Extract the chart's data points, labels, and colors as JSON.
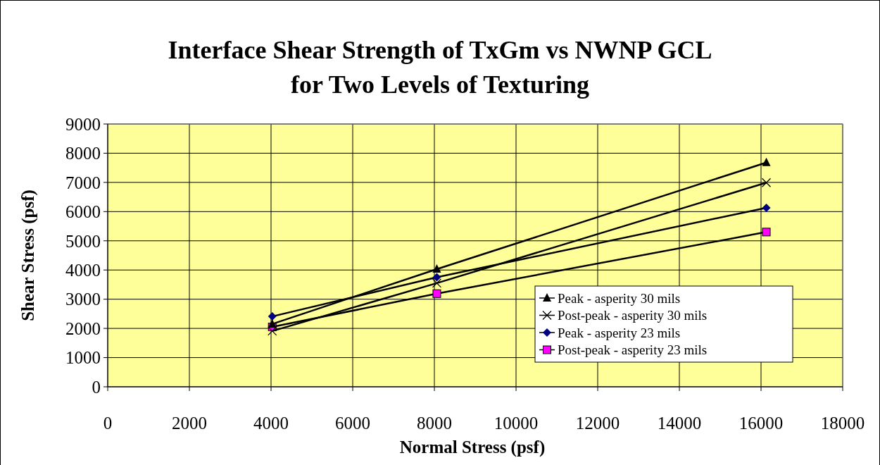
{
  "chart_data": {
    "type": "line",
    "title": "Interface Shear Strength of TxGm vs NWNP GCL for Two Levels of Texturing",
    "xlabel": "Normal Stress (psf)",
    "ylabel": "Shear Stress (psf)",
    "x": [
      4030,
      8060,
      16130
    ],
    "series": [
      {
        "name": "Peak - asperity 30 mils",
        "color": "#000000",
        "marker": "triangle",
        "values": [
          2150,
          4030,
          7680
        ]
      },
      {
        "name": "Post-peak - asperity 30 mils",
        "color": "#000000",
        "marker": "cross",
        "values": [
          1910,
          3550,
          6990
        ]
      },
      {
        "name": "Peak - asperity 23 mils",
        "color": "#000080",
        "marker": "diamond",
        "values": [
          2410,
          3750,
          6130
        ]
      },
      {
        "name": "Post-peak - asperity 23 mils",
        "color": "#ff00ff",
        "marker": "square",
        "values": [
          2050,
          3190,
          5300
        ]
      }
    ],
    "xlim": [
      0,
      18000
    ],
    "xticks": [
      0,
      2000,
      4000,
      6000,
      8000,
      10000,
      12000,
      14000,
      16000,
      18000
    ],
    "ylim": [
      0,
      9000
    ],
    "yticks": [
      0,
      1000,
      2000,
      3000,
      4000,
      5000,
      6000,
      7000,
      8000,
      9000
    ],
    "grid": true,
    "legend": "bottom right"
  }
}
